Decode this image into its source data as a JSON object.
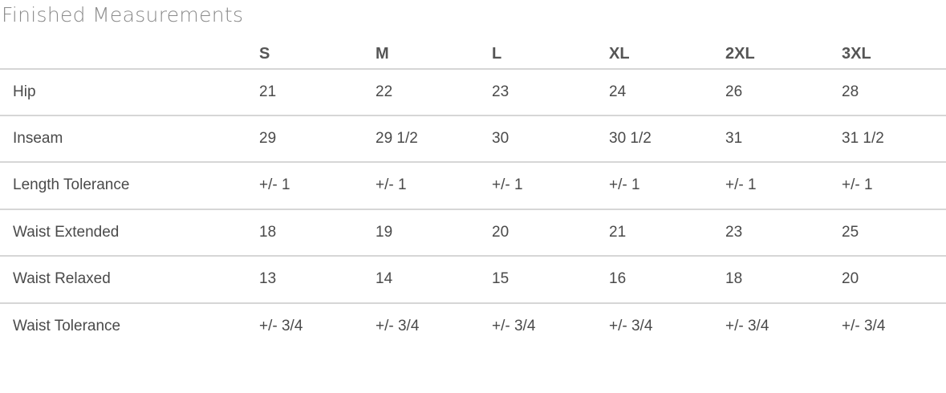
{
  "title": "Finished Measurements",
  "sizes": [
    "S",
    "M",
    "L",
    "XL",
    "2XL",
    "3XL"
  ],
  "rows": [
    {
      "label": "Hip",
      "values": [
        "21",
        "22",
        "23",
        "24",
        "26",
        "28"
      ]
    },
    {
      "label": "Inseam",
      "values": [
        "29",
        "29 1/2",
        "30",
        "30 1/2",
        "31",
        "31 1/2"
      ]
    },
    {
      "label": "Length Tolerance",
      "values": [
        "+/- 1",
        "+/- 1",
        "+/- 1",
        "+/- 1",
        "+/- 1",
        "+/- 1"
      ]
    },
    {
      "label": "Waist Extended",
      "values": [
        "18",
        "19",
        "20",
        "21",
        "23",
        "25"
      ]
    },
    {
      "label": "Waist Relaxed",
      "values": [
        "13",
        "14",
        "15",
        "16",
        "18",
        "20"
      ]
    },
    {
      "label": "Waist Tolerance",
      "values": [
        "+/- 3/4",
        "+/- 3/4",
        "+/- 3/4",
        "+/- 3/4",
        "+/- 3/4",
        "+/- 3/4"
      ]
    }
  ]
}
